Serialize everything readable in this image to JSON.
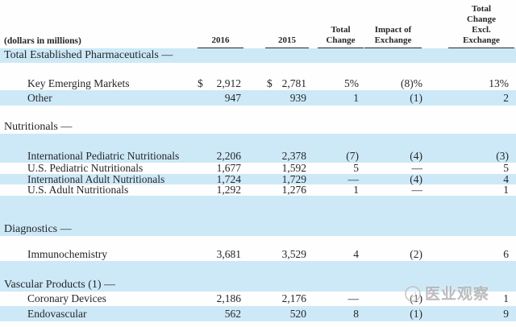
{
  "header": {
    "units_note": "(dollars in millions)",
    "columns": [
      {
        "id": "year-2016",
        "lines": [
          "2016"
        ]
      },
      {
        "id": "year-2015",
        "lines": [
          "2015"
        ]
      },
      {
        "id": "total-change",
        "lines": [
          "Total",
          "Change"
        ]
      },
      {
        "id": "impact-of-exchange",
        "lines": [
          "Impact of",
          "Exchange"
        ]
      },
      {
        "id": "total-change-excl-exchange",
        "lines": [
          "Total",
          "Change",
          "Excl.",
          "Exchange"
        ]
      }
    ]
  },
  "table": {
    "rows": [
      {
        "kind": "section",
        "bg": "blue",
        "h": 18,
        "label": "Total Established Pharmaceuticals —"
      },
      {
        "kind": "blank",
        "bg": "white",
        "h": 17
      },
      {
        "kind": "data",
        "bg": "white",
        "h": 17,
        "label": "Key Emerging Markets",
        "dollar": true,
        "values": [
          "2,912",
          "2,781",
          "5%",
          "(8)%",
          "13%"
        ]
      },
      {
        "kind": "data",
        "bg": "blue",
        "h": 19,
        "label": "Other",
        "values": [
          "947",
          "939",
          "1",
          "(1)",
          "2"
        ]
      },
      {
        "kind": "blank",
        "bg": "white",
        "h": 18
      },
      {
        "kind": "section",
        "bg": "white",
        "h": 17,
        "label": "Nutritionals —"
      },
      {
        "kind": "blank",
        "bg": "blue",
        "h": 19
      },
      {
        "kind": "data",
        "bg": "blue",
        "h": 17,
        "label": "International Pediatric Nutritionals",
        "values": [
          "2,206",
          "2,378",
          "(7)",
          "(4)",
          "(3)"
        ]
      },
      {
        "kind": "data",
        "bg": "white",
        "h": 14,
        "label": "U.S. Pediatric Nutritionals",
        "values": [
          "1,677",
          "1,592",
          "5",
          "—",
          "5"
        ]
      },
      {
        "kind": "data",
        "bg": "blue",
        "h": 13,
        "label": "International Adult Nutritionals",
        "values": [
          "1,724",
          "1,729",
          "—",
          "(4)",
          "4"
        ]
      },
      {
        "kind": "data",
        "bg": "white",
        "h": 14,
        "label": "U.S. Adult Nutritionals",
        "values": [
          "1,292",
          "1,276",
          "1",
          "—",
          "1"
        ]
      },
      {
        "kind": "blank",
        "bg": "blue",
        "h": 33
      },
      {
        "kind": "section",
        "bg": "blue",
        "h": 17,
        "label": "Diagnostics —"
      },
      {
        "kind": "blank",
        "bg": "white",
        "h": 14
      },
      {
        "kind": "data",
        "bg": "white",
        "h": 17,
        "label": "Immunochemistry",
        "values": [
          "3,681",
          "3,529",
          "4",
          "(2)",
          "6"
        ]
      },
      {
        "kind": "blank",
        "bg": "blue",
        "h": 22
      },
      {
        "kind": "section",
        "bg": "blue",
        "h": 16,
        "label": "Vascular Products (1) —"
      },
      {
        "kind": "data",
        "bg": "white",
        "h": 18,
        "label": "Coronary Devices",
        "values": [
          "2,186",
          "2,176",
          "—",
          "(1)",
          "1"
        ]
      },
      {
        "kind": "data",
        "bg": "blue",
        "h": 19,
        "label": "Endovascular",
        "values": [
          "562",
          "520",
          "8",
          "(1)",
          "9"
        ]
      },
      {
        "kind": "blank",
        "bg": "white",
        "h": 7
      }
    ]
  },
  "watermark": {
    "text": "医业观察"
  },
  "colors": {
    "stripe_blue": "#cde9f7",
    "text": "#26262b",
    "rule": "#2b2b2b",
    "watermark_gray": "#aeaeae"
  }
}
